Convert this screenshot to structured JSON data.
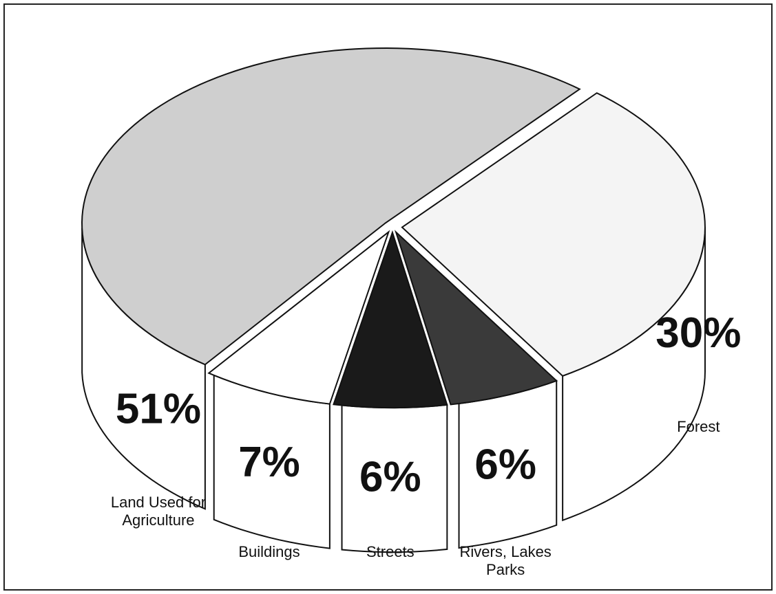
{
  "chart_data": {
    "type": "pie",
    "categories": [
      "Land Used for Agriculture",
      "Buildings",
      "Streets",
      "Rivers, Lakes Parks",
      "Forest"
    ],
    "values": [
      51,
      7,
      6,
      6,
      30
    ],
    "value_labels": [
      "51%",
      "7%",
      "6%",
      "6%",
      "30%"
    ],
    "colors": [
      "#cfcfcf",
      "#ffffff",
      "#1a1a1a",
      "#3a3a3a",
      "#f4f4f4"
    ]
  }
}
